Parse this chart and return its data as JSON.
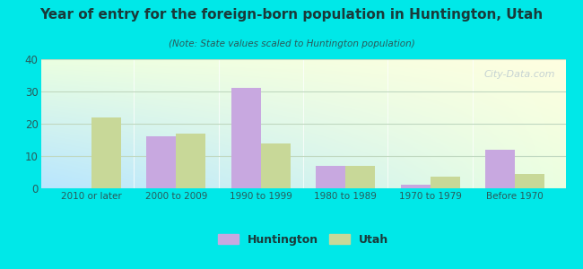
{
  "title": "Year of entry for the foreign-born population in Huntington, Utah",
  "subtitle": "(Note: State values scaled to Huntington population)",
  "categories": [
    "2010 or later",
    "2000 to 2009",
    "1990 to 1999",
    "1980 to 1989",
    "1970 to 1979",
    "Before 1970"
  ],
  "huntington_values": [
    0,
    16,
    31,
    7,
    1,
    12
  ],
  "utah_values": [
    22,
    17,
    14,
    7,
    3.5,
    4.5
  ],
  "huntington_color": "#c8a8e0",
  "utah_color": "#c8d898",
  "background_outer": "#00e8e8",
  "ylim": [
    0,
    40
  ],
  "yticks": [
    0,
    10,
    20,
    30,
    40
  ],
  "bar_width": 0.35,
  "legend_huntington": "Huntington",
  "legend_utah": "Utah",
  "title_color": "#1a3a3a",
  "subtitle_color": "#2a5a5a",
  "tick_color": "#2a5a5a",
  "grid_color": "#c0d8c0",
  "watermark": "City-Data.com"
}
